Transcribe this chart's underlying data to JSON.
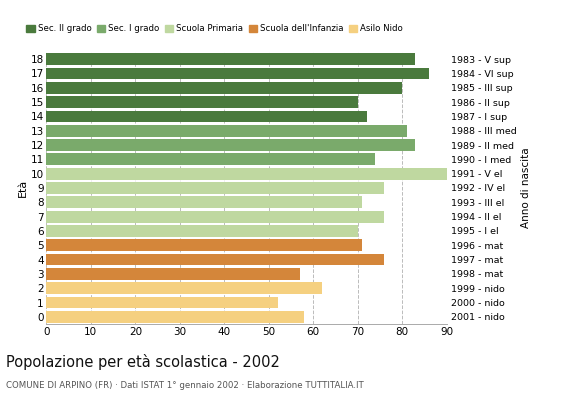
{
  "ages": [
    0,
    1,
    2,
    3,
    4,
    5,
    6,
    7,
    8,
    9,
    10,
    11,
    12,
    13,
    14,
    15,
    16,
    17,
    18
  ],
  "values": [
    58,
    52,
    62,
    57,
    76,
    71,
    70,
    76,
    71,
    76,
    90,
    74,
    83,
    81,
    72,
    70,
    80,
    86,
    83
  ],
  "right_labels": [
    "2001 - nido",
    "2000 - nido",
    "1999 - nido",
    "1998 - mat",
    "1997 - mat",
    "1996 - mat",
    "1995 - I el",
    "1994 - II el",
    "1993 - III el",
    "1992 - IV el",
    "1991 - V el",
    "1990 - I med",
    "1989 - II med",
    "1988 - III med",
    "1987 - I sup",
    "1986 - II sup",
    "1985 - III sup",
    "1984 - VI sup",
    "1983 - V sup"
  ],
  "bar_colors": [
    "#f5d080",
    "#f5d080",
    "#f5d080",
    "#d4863a",
    "#d4863a",
    "#d4863a",
    "#bfd8a0",
    "#bfd8a0",
    "#bfd8a0",
    "#bfd8a0",
    "#bfd8a0",
    "#7aaa6b",
    "#7aaa6b",
    "#7aaa6b",
    "#4a7a3d",
    "#4a7a3d",
    "#4a7a3d",
    "#4a7a3d",
    "#4a7a3d"
  ],
  "legend_labels": [
    "Sec. II grado",
    "Sec. I grado",
    "Scuola Primaria",
    "Scuola dell'Infanzia",
    "Asilo Nido"
  ],
  "legend_colors": [
    "#4a7a3d",
    "#7aaa6b",
    "#bfd8a0",
    "#d4863a",
    "#f5d080"
  ],
  "title": "Popolazione per età scolastica - 2002",
  "subtitle": "COMUNE DI ARPINO (FR) · Dati ISTAT 1° gennaio 2002 · Elaborazione TUTTITALIA.IT",
  "ylabel": "Età",
  "right_ylabel": "Anno di nascita",
  "xlabel_values": [
    0,
    10,
    20,
    30,
    40,
    50,
    60,
    70,
    80,
    90
  ],
  "xlim": [
    0,
    90
  ],
  "background_color": "#ffffff",
  "grid_color": "#bbbbbb"
}
